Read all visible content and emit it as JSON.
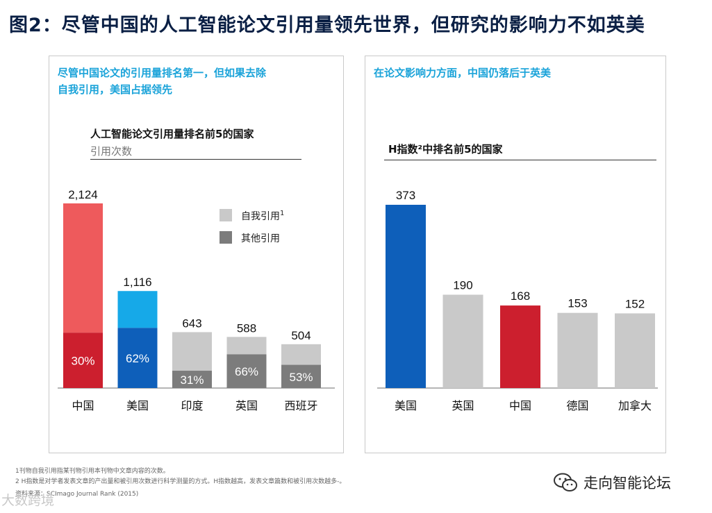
{
  "title": "图2：尽管中国的人工智能论文引用量领先世界，但研究的影响力不如英美",
  "colors": {
    "red": "#ee5a5c",
    "dark_red": "#cc1f2e",
    "light_blue": "#16a9e8",
    "blue": "#0e5fba",
    "light_gray": "#c9c9c9",
    "dark_gray": "#7c7c7c",
    "accent_text": "#1aa3d9"
  },
  "left_panel": {
    "heading_line1": "尽管中国论文的引用量排名第一，但如果去除",
    "heading_line2": "自我引用，美国占据领先",
    "chart_title": "人工智能论文引用量排名前5的国家",
    "chart_subtitle": "引用次数"
  },
  "right_panel": {
    "heading": "在论文影响力方面，中国仍落后于英美",
    "chart_title": "H指数²中排名前5的国家"
  },
  "chart_data": [
    {
      "type": "bar",
      "stacked": true,
      "title": "人工智能论文引用量排名前5的国家",
      "ylabel": "引用次数",
      "categories": [
        "中国",
        "美国",
        "印度",
        "英国",
        "西班牙"
      ],
      "totals": [
        2124,
        1116,
        643,
        588,
        504
      ],
      "total_labels": [
        "2,124",
        "1,116",
        "643",
        "588",
        "504"
      ],
      "lower_share_labels": [
        "30%",
        "62%",
        "31%",
        "66%",
        "53%"
      ],
      "lower_share": [
        0.3,
        0.62,
        0.31,
        0.66,
        0.53
      ],
      "lower_colors": [
        "#cc1f2e",
        "#0e5fba",
        "#7c7c7c",
        "#7c7c7c",
        "#7c7c7c"
      ],
      "upper_colors": [
        "#ee5a5c",
        "#16a9e8",
        "#c9c9c9",
        "#c9c9c9",
        "#c9c9c9"
      ],
      "legend": [
        {
          "label": "自我引用",
          "sup": "1",
          "color": "#c9c9c9"
        },
        {
          "label": "其他引用",
          "sup": "",
          "color": "#7c7c7c"
        }
      ],
      "ylim": [
        0,
        2124
      ]
    },
    {
      "type": "bar",
      "title": "H指数²中排名前5的国家",
      "categories": [
        "美国",
        "英国",
        "中国",
        "德国",
        "加拿大"
      ],
      "values": [
        373,
        190,
        168,
        153,
        152
      ],
      "value_labels": [
        "373",
        "190",
        "168",
        "153",
        "152"
      ],
      "colors": [
        "#0e5fba",
        "#c9c9c9",
        "#cc1f2e",
        "#c9c9c9",
        "#c9c9c9"
      ],
      "ylim": [
        0,
        373
      ]
    }
  ],
  "footnotes": [
    "1刊物自我引用指某刊物引用本刊物中文章内容的次数。",
    "2 H指数是对学者发表文章的产出量和被引用次数进行科学测量的方式。H指数越高，发表文章篇数和被引用次数越多-。",
    "资料来源：SCImago Journal Rank (2015)"
  ],
  "watermark_left": "大数跨境",
  "watermark_right": "走向智能论坛"
}
